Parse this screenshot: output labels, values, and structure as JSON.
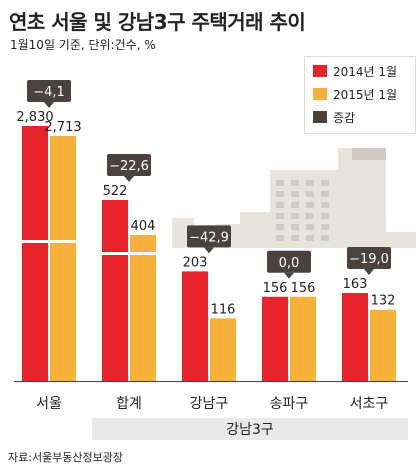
{
  "title": "연초 서울 및 강남3구 주택거래 추이",
  "subtitle": "1월10일 기준, 단위:건수, %",
  "source": "자료:서울부동산정보광장",
  "group_label": "강남3구",
  "colors": {
    "y2014": "#e8242b",
    "y2015": "#f7b03c",
    "change": "#4a423e",
    "building": "#e7e4de",
    "building_dark": "#cfcac2",
    "group_band": "#e9e9e9"
  },
  "chart_data": {
    "type": "bar",
    "title": "연초 서울 및 강남3구 주택거래 추이",
    "subtitle": "1월10일 기준, 단위:건수, %",
    "categories": [
      "서울",
      "합계",
      "강남구",
      "송파구",
      "서초구"
    ],
    "series": [
      {
        "name": "2014년 1월",
        "values": [
          2830,
          522,
          203,
          156,
          163
        ]
      },
      {
        "name": "2015년 1월",
        "values": [
          2713,
          404,
          116,
          156,
          132
        ]
      }
    ],
    "change": {
      "name": "증감",
      "values": [
        "−4,1",
        "−22,6",
        "−42,9",
        "0,0",
        "−19,0"
      ]
    },
    "value_labels": {
      "y2014": [
        "2,830",
        "522",
        "203",
        "156",
        "163"
      ],
      "y2015": [
        "2,713",
        "404",
        "116",
        "156",
        "132"
      ]
    },
    "axis_break": [
      true,
      true,
      false,
      false,
      false
    ],
    "group": {
      "label": "강남3구",
      "categories": [
        "합계",
        "강남구",
        "송파구",
        "서초구"
      ]
    },
    "legend_position": "top-right",
    "grid": false
  }
}
